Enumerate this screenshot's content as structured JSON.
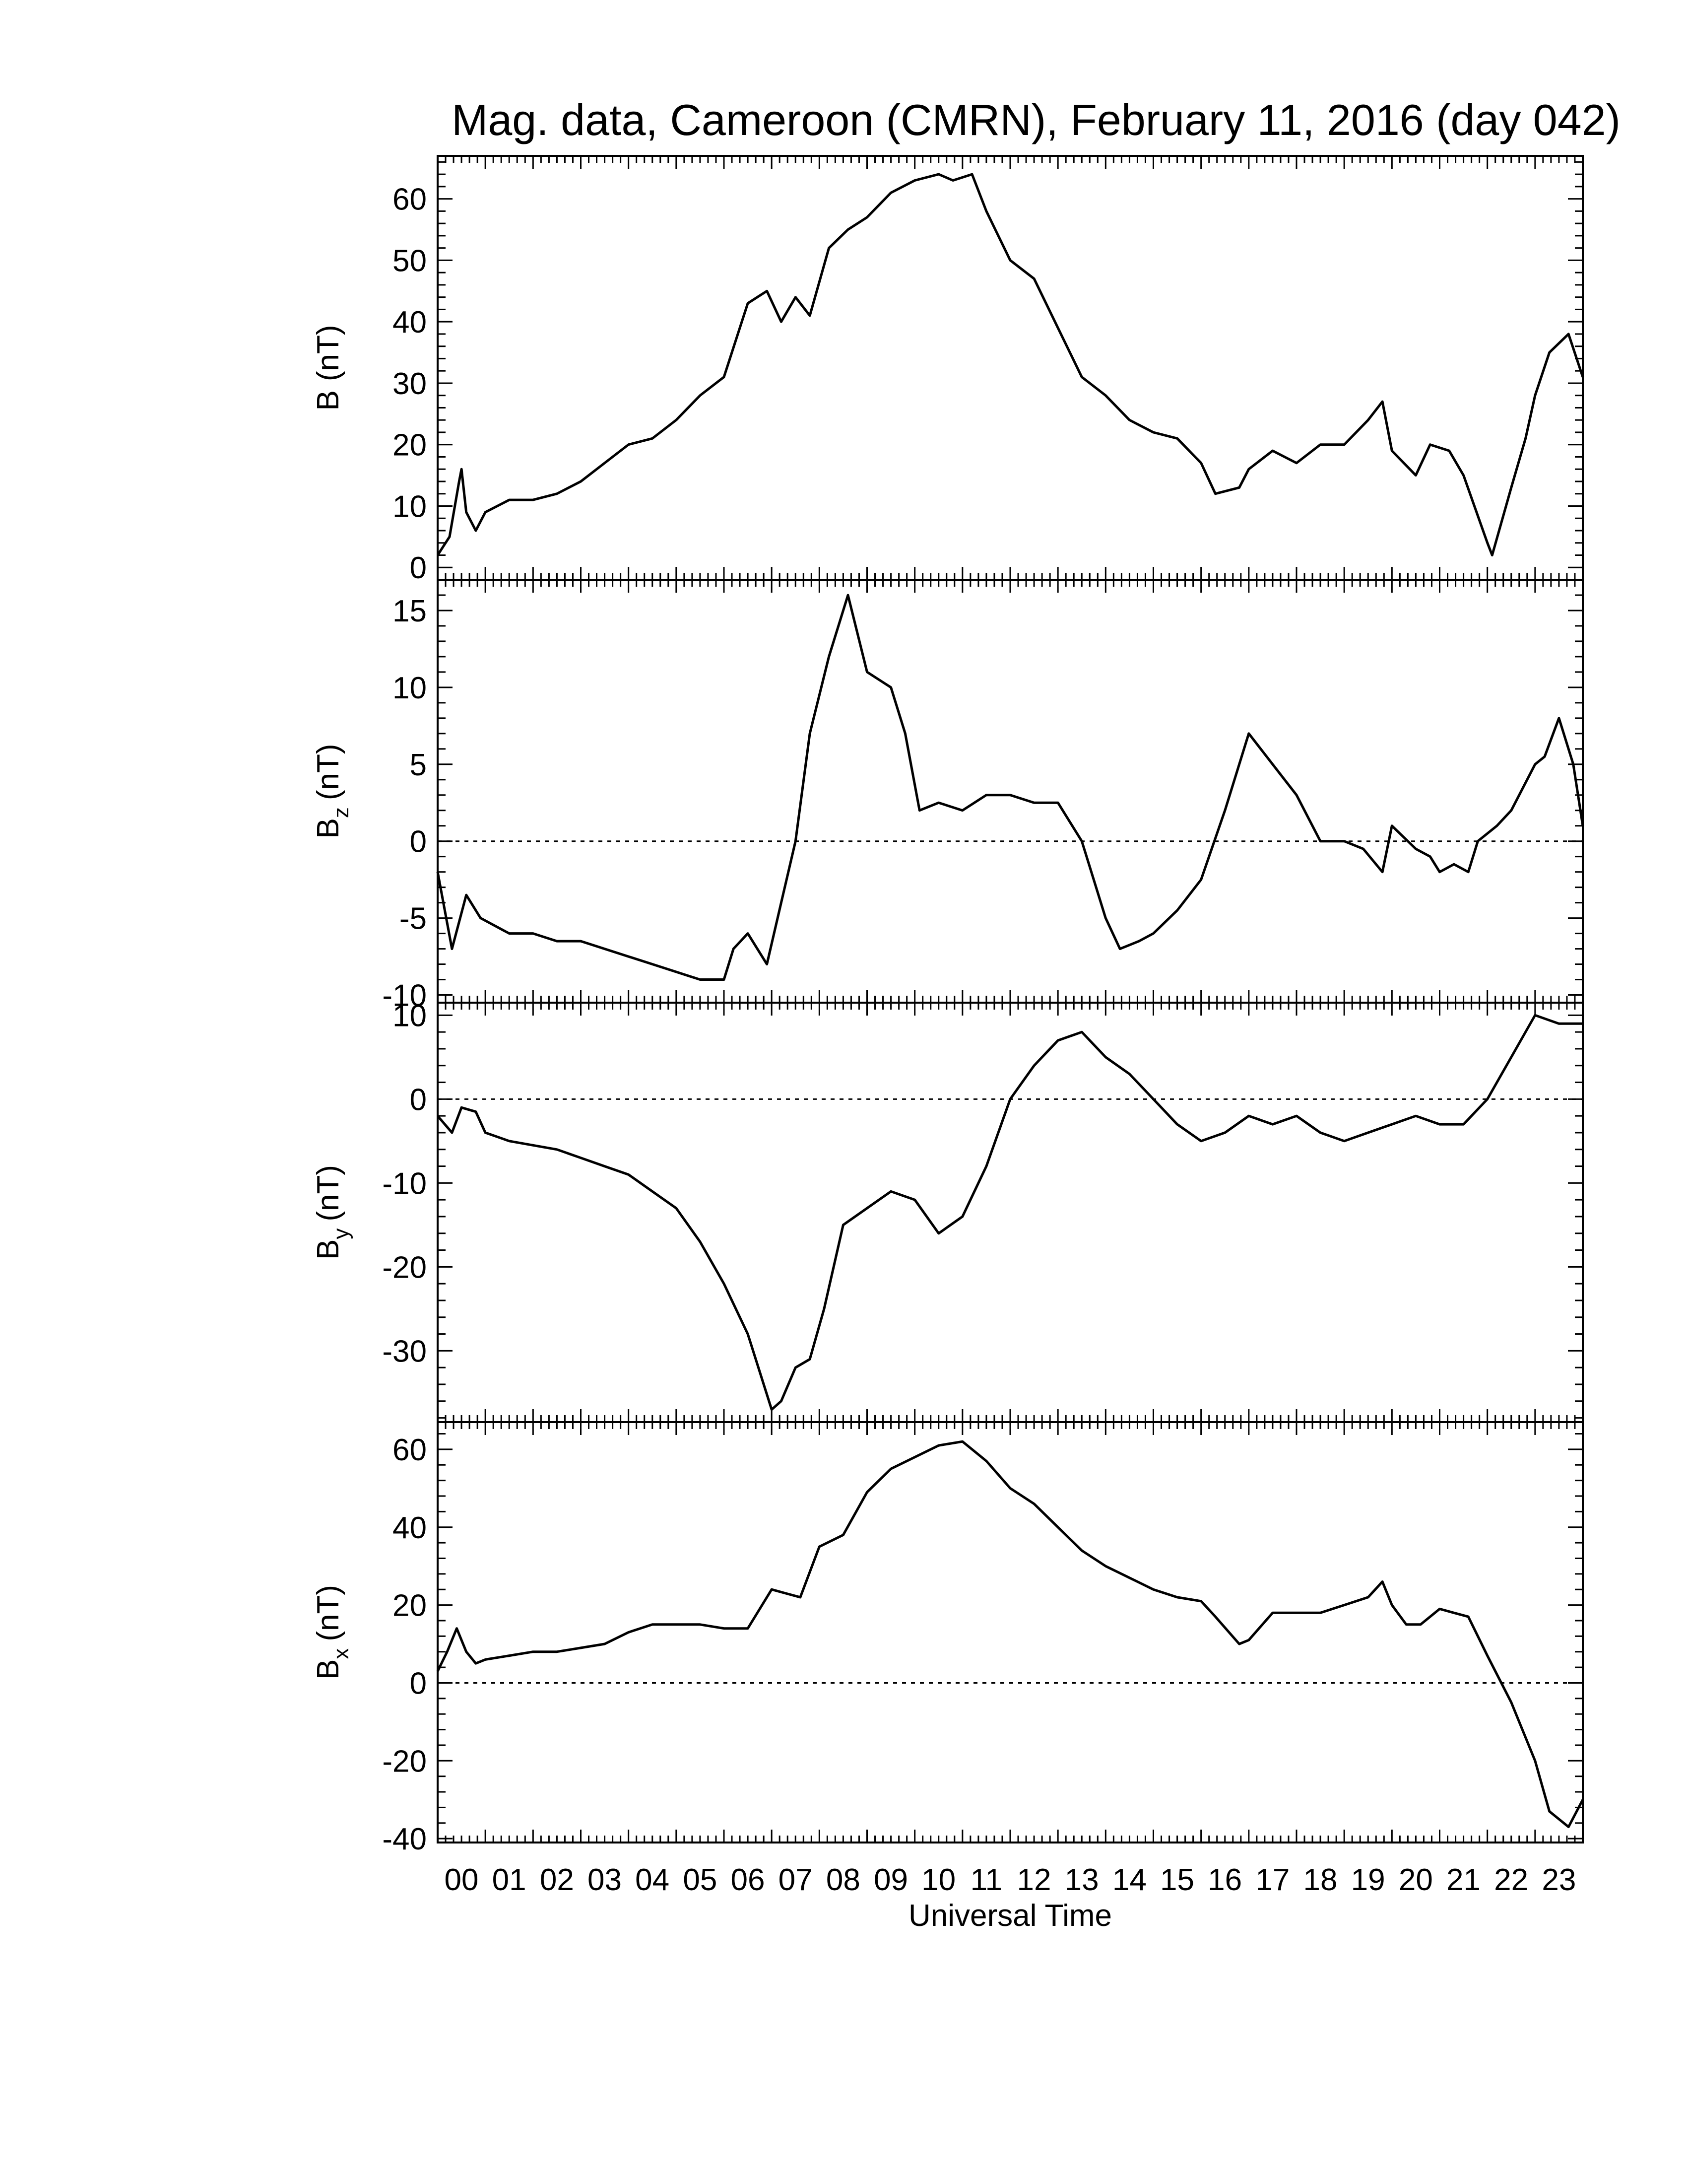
{
  "figure": {
    "title": "Mag. data, Cameroon (CMRN), February 11, 2016 (day 042)",
    "xlabel": "Universal Time"
  },
  "chart_data": [
    {
      "type": "line",
      "panel": "B",
      "ylabel_main": "B",
      "ylabel_sub": "",
      "ylabel_unit": "(nT)",
      "ylim": [
        -2,
        67
      ],
      "yticks": [
        0,
        10,
        20,
        30,
        40,
        50,
        60
      ],
      "zero_line": false,
      "series": [
        {
          "x": [
            0,
            0.25,
            0.45,
            0.5,
            0.6,
            0.8,
            1.0,
            1.5,
            2.0,
            2.5,
            3.0,
            3.5,
            4.0,
            4.5,
            5.0,
            5.5,
            6.0,
            6.5,
            6.9,
            7.2,
            7.5,
            7.8,
            8.2,
            8.6,
            9.0,
            9.5,
            10.0,
            10.5,
            10.8,
            11.2,
            11.5,
            12.0,
            12.5,
            13.0,
            13.5,
            14.0,
            14.5,
            15.0,
            15.5,
            16.0,
            16.3,
            16.8,
            17.0,
            17.5,
            18.0,
            18.5,
            19.0,
            19.5,
            19.8,
            20.0,
            20.5,
            20.8,
            21.2,
            21.5,
            22.0,
            22.1,
            22.5,
            22.8,
            23.0,
            23.3,
            23.7,
            24.0
          ],
          "y": [
            2,
            5,
            14,
            16,
            9,
            6,
            9,
            11,
            11,
            12,
            14,
            17,
            20,
            21,
            24,
            28,
            31,
            43,
            45,
            40,
            44,
            41,
            52,
            55,
            57,
            61,
            63,
            64,
            63,
            64,
            58,
            50,
            47,
            39,
            31,
            28,
            24,
            22,
            21,
            17,
            12,
            13,
            16,
            19,
            17,
            20,
            20,
            24,
            27,
            19,
            15,
            20,
            19,
            15,
            4,
            2,
            13,
            21,
            28,
            35,
            38,
            31
          ]
        }
      ]
    },
    {
      "type": "line",
      "panel": "Bz",
      "ylabel_main": "B",
      "ylabel_sub": "z",
      "ylabel_unit": "(nT)",
      "ylim": [
        -10.5,
        17
      ],
      "yticks": [
        -10,
        -5,
        0,
        5,
        10,
        15
      ],
      "zero_line": true,
      "series": [
        {
          "x": [
            0,
            0.3,
            0.6,
            0.9,
            1.5,
            2.0,
            2.5,
            3.0,
            3.5,
            4.0,
            4.5,
            5.0,
            5.5,
            6.0,
            6.2,
            6.5,
            6.9,
            7.2,
            7.5,
            7.8,
            8.2,
            8.6,
            9.0,
            9.5,
            9.8,
            10.1,
            10.5,
            11.0,
            11.5,
            12.0,
            12.5,
            13.0,
            13.5,
            14.0,
            14.3,
            14.7,
            15.0,
            15.5,
            16.0,
            16.5,
            17.0,
            17.5,
            18.0,
            18.5,
            19.0,
            19.4,
            19.8,
            20.0,
            20.5,
            20.8,
            21.0,
            21.3,
            21.6,
            21.8,
            22.2,
            22.5,
            23.0,
            23.2,
            23.5,
            23.8,
            24.0
          ],
          "y": [
            -2,
            -7,
            -3.5,
            -5,
            -6,
            -6,
            -6.5,
            -6.5,
            -7,
            -7.5,
            -8,
            -8.5,
            -9,
            -9,
            -7,
            -6,
            -8,
            -4,
            0,
            7,
            12,
            16,
            11,
            10,
            7,
            2,
            2.5,
            2,
            3,
            3,
            2.5,
            2.5,
            0,
            -5,
            -7,
            -6.5,
            -6,
            -4.5,
            -2.5,
            2,
            7,
            5,
            3,
            0,
            0,
            -0.5,
            -2,
            1,
            -0.5,
            -1,
            -2,
            -1.5,
            -2,
            0,
            1,
            2,
            5,
            5.5,
            8,
            5,
            1
          ]
        }
      ]
    },
    {
      "type": "line",
      "panel": "By",
      "ylabel_main": "B",
      "ylabel_sub": "y",
      "ylabel_unit": "(nT)",
      "ylim": [
        -38.5,
        11.5
      ],
      "yticks": [
        -30,
        -20,
        -10,
        0,
        10
      ],
      "zero_line": true,
      "series": [
        {
          "x": [
            0,
            0.3,
            0.5,
            0.8,
            1.0,
            1.5,
            2.0,
            2.5,
            3.0,
            3.5,
            4.0,
            4.5,
            5.0,
            5.5,
            6.0,
            6.5,
            7.0,
            7.2,
            7.5,
            7.8,
            8.1,
            8.5,
            9.0,
            9.5,
            10.0,
            10.5,
            11.0,
            11.5,
            12.0,
            12.5,
            13.0,
            13.5,
            14.0,
            14.5,
            15.0,
            15.5,
            16.0,
            16.5,
            17.0,
            17.5,
            18.0,
            18.5,
            19.0,
            19.5,
            20.0,
            20.5,
            21.0,
            21.5,
            22.0,
            22.5,
            23.0,
            23.5,
            24.0
          ],
          "y": [
            -2,
            -4,
            -1,
            -1.5,
            -4,
            -5,
            -5.5,
            -6,
            -7,
            -8,
            -9,
            -11,
            -13,
            -17,
            -22,
            -28,
            -37,
            -36,
            -32,
            -31,
            -25,
            -15,
            -13,
            -11,
            -12,
            -16,
            -14,
            -8,
            0,
            4,
            7,
            8,
            5,
            3,
            0,
            -3,
            -5,
            -4,
            -2,
            -3,
            -2,
            -4,
            -5,
            -4,
            -3,
            -2,
            -3,
            -3,
            0,
            5,
            10,
            9,
            9
          ]
        }
      ]
    },
    {
      "type": "line",
      "panel": "Bx",
      "ylabel_main": "B",
      "ylabel_sub": "x",
      "ylabel_unit": "(nT)",
      "ylim": [
        -41,
        67
      ],
      "yticks": [
        -40,
        -20,
        0,
        20,
        40,
        60
      ],
      "zero_line": true,
      "series": [
        {
          "x": [
            0,
            0.2,
            0.4,
            0.6,
            0.8,
            1.0,
            1.5,
            2.0,
            2.5,
            3.0,
            3.5,
            4.0,
            4.5,
            5.0,
            5.5,
            6.0,
            6.5,
            7.0,
            7.3,
            7.6,
            8.0,
            8.5,
            9.0,
            9.5,
            10.0,
            10.5,
            11.0,
            11.5,
            12.0,
            12.5,
            13.0,
            13.5,
            14.0,
            14.5,
            15.0,
            15.5,
            16.0,
            16.3,
            16.8,
            17.0,
            17.5,
            18.0,
            18.5,
            19.0,
            19.5,
            19.8,
            20.0,
            20.3,
            20.6,
            21.0,
            21.3,
            21.6,
            22.0,
            22.5,
            23.0,
            23.3,
            23.7,
            24.0
          ],
          "y": [
            3,
            8,
            14,
            8,
            5,
            6,
            7,
            8,
            8,
            9,
            10,
            13,
            15,
            15,
            15,
            14,
            14,
            24,
            23,
            22,
            35,
            38,
            49,
            55,
            58,
            61,
            62,
            57,
            50,
            46,
            40,
            34,
            30,
            27,
            24,
            22,
            21,
            17,
            10,
            11,
            18,
            18,
            18,
            20,
            22,
            26,
            20,
            15,
            15,
            19,
            18,
            17,
            7,
            -5,
            -20,
            -33,
            -37,
            -30
          ]
        }
      ]
    }
  ]
}
